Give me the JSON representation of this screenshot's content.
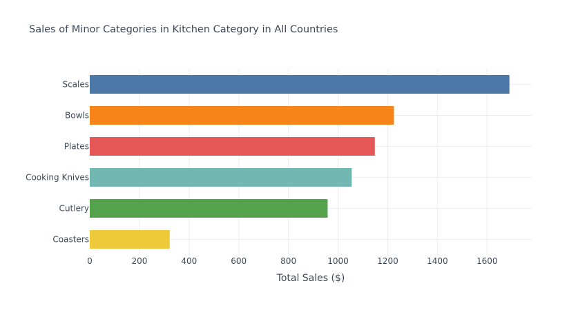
{
  "chart_data": {
    "type": "bar",
    "orientation": "horizontal",
    "title": "Sales of Minor Categories in Kitchen Category in All Countries",
    "xlabel": "Total Sales ($)",
    "ylabel": "",
    "categories": [
      "Scales",
      "Bowls",
      "Plates",
      "Cooking Knives",
      "Cutlery",
      "Coasters"
    ],
    "values": [
      1690,
      1225,
      1148,
      1055,
      958,
      322
    ],
    "colors": [
      "#4c78a8",
      "#f58518",
      "#e45756",
      "#72b7b2",
      "#54a24b",
      "#eeca3b"
    ],
    "xlim": [
      0,
      1780
    ],
    "xticks": [
      0,
      200,
      400,
      600,
      800,
      1000,
      1200,
      1400,
      1600
    ],
    "grid": true,
    "legend": false
  }
}
